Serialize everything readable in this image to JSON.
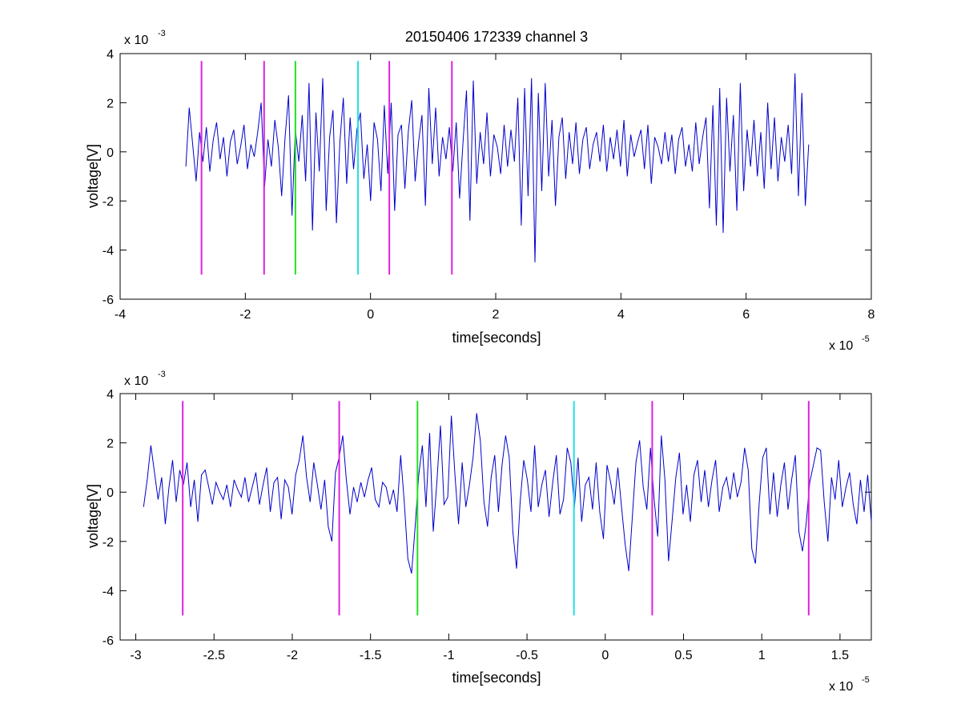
{
  "chart_data": [
    {
      "type": "line",
      "title": "20150406 172339 channel 3",
      "xlabel": "time[seconds]",
      "ylabel": "voltage[V]",
      "x_exponent_base": "x 10",
      "x_exponent_power": "-5",
      "y_exponent_base": "x 10",
      "y_exponent_power": "-3",
      "xlim": [
        -4,
        8
      ],
      "ylim": [
        -6,
        4
      ],
      "xticks": [
        -4,
        -2,
        0,
        2,
        4,
        6,
        8
      ],
      "xtick_labels": [
        "-4",
        "-2",
        "0",
        "2",
        "4",
        "6",
        "8"
      ],
      "yticks": [
        -6,
        -4,
        -2,
        0,
        2,
        4
      ],
      "ytick_labels": [
        "-6",
        "-4",
        "-2",
        "0",
        "2",
        "4"
      ],
      "grid": false,
      "series": [
        {
          "color": "#0000cc",
          "x_start": -2.95,
          "x_end": 7.0,
          "y": [
            -0.6,
            1.8,
            0.3,
            -1.2,
            0.8,
            -0.4,
            1.0,
            -0.8,
            0.5,
            1.2,
            -0.3,
            0.6,
            -1.0,
            0.4,
            0.9,
            -0.5,
            0.2,
            1.1,
            -0.7,
            0.3,
            -0.2,
            0.8,
            2.0,
            -1.4,
            0.5,
            -0.6,
            1.3,
            0.2,
            -1.8,
            0.6,
            2.3,
            -2.6,
            0.9,
            -0.4,
            1.5,
            -1.2,
            2.8,
            -3.2,
            1.6,
            -0.8,
            3.0,
            -2.4,
            0.6,
            1.7,
            -2.9,
            0.4,
            2.2,
            -1.3,
            1.4,
            -0.7,
            0.9,
            1.6,
            -1.1,
            0.3,
            -2.0,
            1.2,
            0.5,
            -1.6,
            1.9,
            -0.9,
            2.0,
            -2.4,
            0.7,
            1.1,
            -1.5,
            0.8,
            2.1,
            -1.2,
            0.4,
            1.5,
            -2.2,
            2.6,
            -0.5,
            1.8,
            -1.0,
            0.6,
            -0.3,
            1.0,
            -0.8,
            1.2,
            -1.9,
            0.4,
            2.5,
            -2.8,
            2.9,
            -1.3,
            0.8,
            -0.5,
            1.6,
            -1.0,
            0.7,
            0.2,
            -0.9,
            1.1,
            -0.6,
            0.9,
            -0.4,
            2.2,
            -3.0,
            2.6,
            -1.8,
            3.0,
            -4.5,
            2.4,
            -1.6,
            2.8,
            -1.0,
            1.3,
            -2.2,
            0.6,
            1.4,
            -1.1,
            0.8,
            -0.5,
            1.2,
            -0.9,
            0.5,
            1.0,
            -0.7,
            0.3,
            0.8,
            -0.4,
            1.1,
            -0.8,
            0.6,
            -0.3,
            0.9,
            -0.6,
            1.3,
            -1.0,
            0.7,
            -0.2,
            0.4,
            0.9,
            -0.7,
            1.1,
            -1.3,
            0.6,
            0.2,
            -0.5,
            0.8,
            -0.4,
            0.7,
            -0.9,
            0.5,
            1.0,
            -0.6,
            0.3,
            -0.8,
            1.2,
            -0.5,
            0.6,
            1.4,
            -2.3,
            1.9,
            -3.0,
            2.6,
            -3.3,
            2.2,
            -0.8,
            1.5,
            -2.4,
            2.8,
            -1.6,
            0.9,
            -0.6,
            1.3,
            -1.0,
            0.8,
            -1.5,
            2.0,
            -0.7,
            1.4,
            -1.2,
            0.6,
            -0.4,
            1.1,
            -0.9,
            3.2,
            -1.8,
            2.4,
            -2.2,
            0.3
          ]
        }
      ],
      "markers": [
        {
          "x": -2.7,
          "color": "#e020e0"
        },
        {
          "x": -1.7,
          "color": "#e020e0"
        },
        {
          "x": -1.2,
          "color": "#20e020"
        },
        {
          "x": -0.2,
          "color": "#20e0e8"
        },
        {
          "x": 0.3,
          "color": "#e020e0"
        },
        {
          "x": 1.3,
          "color": "#e020e0"
        }
      ],
      "marker_ylim": [
        -5,
        3.7
      ]
    },
    {
      "type": "line",
      "title": "",
      "xlabel": "time[seconds]",
      "ylabel": "voltage[V]",
      "x_exponent_base": "x 10",
      "x_exponent_power": "-5",
      "y_exponent_base": "x 10",
      "y_exponent_power": "-3",
      "xlim": [
        -3.1,
        1.7
      ],
      "ylim": [
        -6,
        4
      ],
      "xticks": [
        -3,
        -2.5,
        -2,
        -1.5,
        -1,
        -0.5,
        0,
        0.5,
        1,
        1.5
      ],
      "xtick_labels": [
        "-3",
        "-2.5",
        "-2",
        "-1.5",
        "-1",
        "-0.5",
        "0",
        "0.5",
        "1",
        "1.5"
      ],
      "yticks": [
        -6,
        -4,
        -2,
        0,
        2,
        4
      ],
      "ytick_labels": [
        "-6",
        "-4",
        "-2",
        "0",
        "2",
        "4"
      ],
      "grid": false,
      "series": [
        {
          "color": "#0000cc",
          "x_start": -2.95,
          "x_end": 1.7,
          "y": [
            -0.6,
            0.5,
            1.9,
            0.8,
            -0.3,
            0.6,
            -1.3,
            0.2,
            1.3,
            -0.4,
            0.9,
            0.3,
            1.2,
            -0.6,
            0.5,
            -1.2,
            0.7,
            0.9,
            0.2,
            -0.5,
            0.4,
            0.0,
            -0.3,
            0.3,
            -0.6,
            0.5,
            0.1,
            -0.2,
            0.6,
            -0.4,
            0.2,
            0.8,
            -0.5,
            0.3,
            1.0,
            -0.8,
            0.4,
            0.6,
            -1.1,
            0.5,
            0.2,
            -0.9,
            0.7,
            1.3,
            2.3,
            0.6,
            -0.4,
            1.2,
            0.3,
            -0.7,
            0.5,
            -1.4,
            -2.0,
            0.8,
            1.4,
            2.3,
            0.5,
            -0.9,
            0.2,
            -0.4,
            0.4,
            -0.2,
            0.5,
            1.0,
            -0.3,
            -0.6,
            0.4,
            0.2,
            -0.5,
            0.1,
            -0.8,
            1.5,
            -0.4,
            -2.7,
            -3.3,
            -1.4,
            0.7,
            1.9,
            -0.6,
            2.4,
            -1.6,
            0.4,
            2.7,
            -0.5,
            -0.2,
            3.1,
            0.7,
            -1.3,
            1.2,
            -0.6,
            0.3,
            1.4,
            3.2,
            2.1,
            -0.4,
            -1.4,
            0.6,
            1.5,
            -0.8,
            1.1,
            2.3,
            1.4,
            -1.6,
            -3.1,
            -0.4,
            1.3,
            0.5,
            -0.8,
            1.9,
            -0.6,
            0.3,
            0.9,
            -1.0,
            0.4,
            1.5,
            -0.9,
            -0.3,
            1.8,
            1.2,
            -0.6,
            1.4,
            -1.2,
            0.3,
            0.6,
            -0.7,
            1.2,
            -0.8,
            -1.9,
            1.1,
            0.4,
            -0.5,
            1.0,
            -0.6,
            -2.1,
            -3.2,
            -1.0,
            1.2,
            2.1,
            0.2,
            -0.7,
            1.8,
            -0.3,
            -1.8,
            2.3,
            0.5,
            -2.8,
            -1.1,
            0.6,
            1.6,
            -0.9,
            0.3,
            -1.2,
            0.7,
            1.3,
            -0.4,
            0.9,
            -0.6,
            0.5,
            1.3,
            -0.8,
            0.2,
            0.6,
            -0.3,
            0.8,
            -0.2,
            0.4,
            1.8,
            0.9,
            -2.3,
            -2.9,
            -0.5,
            1.4,
            1.8,
            -0.9,
            0.8,
            -1.0,
            0.3,
            1.2,
            -0.7,
            0.5,
            1.5,
            -1.6,
            -2.4,
            -1.3,
            0.4,
            1.1,
            1.8,
            1.7,
            -0.4,
            -2.0,
            0.6,
            -0.3,
            1.3,
            -0.6,
            0.2,
            0.8,
            -0.5,
            -1.3,
            0.5,
            -0.8,
            0.7,
            -1.2
          ]
        }
      ],
      "markers": [
        {
          "x": -2.7,
          "color": "#e020e0"
        },
        {
          "x": -1.7,
          "color": "#e020e0"
        },
        {
          "x": -1.2,
          "color": "#20e020"
        },
        {
          "x": -0.2,
          "color": "#20e0e8"
        },
        {
          "x": 0.3,
          "color": "#e020e0"
        },
        {
          "x": 1.3,
          "color": "#e020e0"
        }
      ],
      "marker_ylim": [
        -5,
        3.7
      ]
    }
  ]
}
